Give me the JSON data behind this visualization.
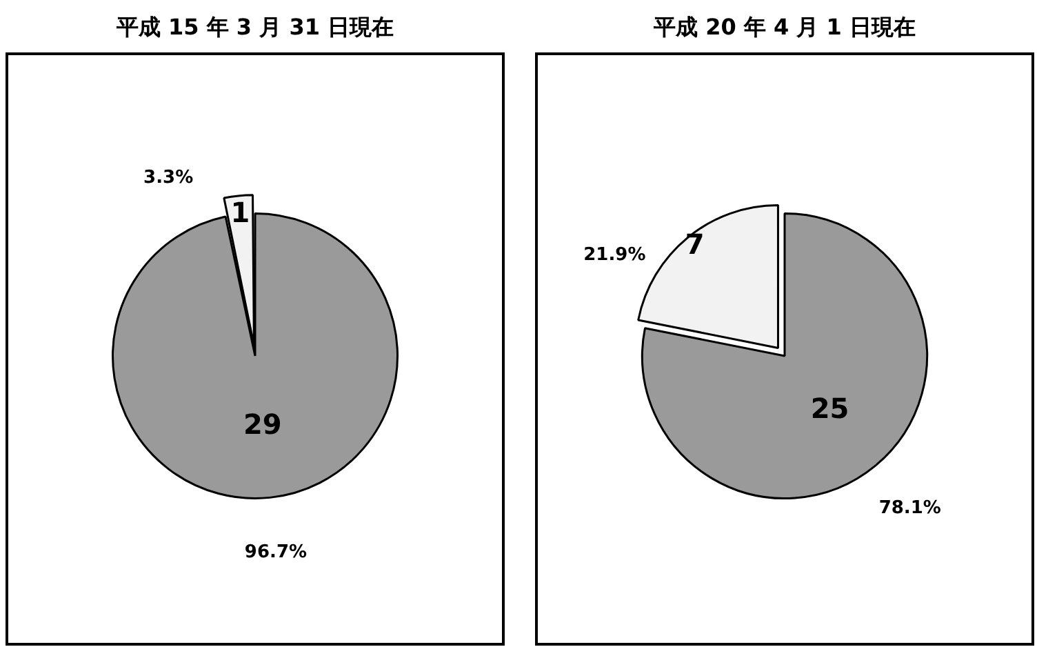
{
  "chart_data": [
    {
      "type": "pie",
      "title": "平成 15 年 3 月 31 日現在",
      "categories": [
        null,
        null
      ],
      "values": [
        29,
        1
      ],
      "colors": [
        "#9a9a9a",
        "#f2f2f2"
      ],
      "data_labels": true,
      "annotations": [
        "96.7%",
        "3.3%"
      ]
    },
    {
      "type": "pie",
      "title": "平成 20 年 4 月 1 日現在",
      "categories": [
        null,
        null
      ],
      "values": [
        25,
        7
      ],
      "colors": [
        "#9a9a9a",
        "#f2f2f2"
      ],
      "data_labels": true,
      "annotations": [
        "78.1%",
        "21.9%"
      ]
    }
  ]
}
